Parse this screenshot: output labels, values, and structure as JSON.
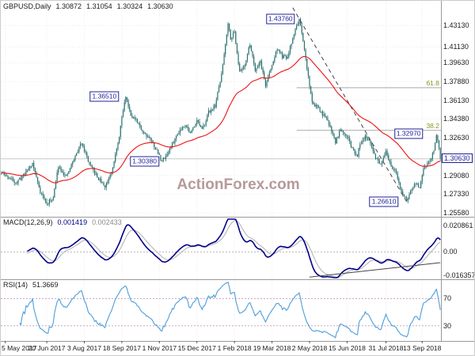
{
  "header": {
    "symbol": "GBPUSD,Daily",
    "open": "1.30872",
    "high": "1.31054",
    "low": "1.30324",
    "close": "1.30630"
  },
  "watermark": "ActionForex.com",
  "chart_data": {
    "type": "candlestick",
    "symbol": "GBPUSD",
    "timeframe": "Daily",
    "panels": [
      "price",
      "MACD",
      "RSI"
    ],
    "candles_count": 340,
    "x_axis": {
      "tick_days": [
        3,
        35,
        64,
        93,
        122,
        151,
        180,
        209,
        238,
        267,
        297,
        325
      ],
      "tick_labels": [
        "5 May 2017",
        "20 Jun 2017",
        "3 Aug 2017",
        "18 Sep 2017",
        "1 Nov 2017",
        "15 Dec 2017",
        "1 Feb 2018",
        "19 Mar 2018",
        "2 May 2018",
        "15 Jun 2018",
        "31 Jul 2018",
        "13 Sep 2018"
      ]
    },
    "y_axis": {
      "min": 1.252,
      "max": 1.4545,
      "ticks": [
        {
          "label": "1.43130",
          "price": 1.4313
        },
        {
          "label": "1.41130",
          "price": 1.4113
        },
        {
          "label": "1.39630",
          "price": 1.3963
        },
        {
          "label": "1.37880",
          "price": 1.3788
        },
        {
          "label": "1.36130",
          "price": 1.3613
        },
        {
          "label": "1.34380",
          "price": 1.3438
        },
        {
          "label": "1.32630",
          "price": 1.3263
        },
        {
          "label": "1.30630",
          "price": 1.3063,
          "current": true
        },
        {
          "label": "1.29080",
          "price": 1.2908
        },
        {
          "label": "1.27330",
          "price": 1.2733
        },
        {
          "label": "1.25580",
          "price": 1.2558
        }
      ]
    },
    "price_path": [
      [
        0,
        1.293
      ],
      [
        5,
        1.289
      ],
      [
        12,
        1.284
      ],
      [
        18,
        1.293
      ],
      [
        24,
        1.302
      ],
      [
        30,
        1.276
      ],
      [
        35,
        1.264
      ],
      [
        40,
        1.27
      ],
      [
        44,
        1.3
      ],
      [
        50,
        1.289
      ],
      [
        56,
        1.306
      ],
      [
        62,
        1.322
      ],
      [
        68,
        1.301
      ],
      [
        74,
        1.289
      ],
      [
        80,
        1.28
      ],
      [
        85,
        1.295
      ],
      [
        90,
        1.32
      ],
      [
        93,
        1.345
      ],
      [
        96,
        1.3651
      ],
      [
        100,
        1.348
      ],
      [
        105,
        1.34
      ],
      [
        110,
        1.331
      ],
      [
        115,
        1.325
      ],
      [
        120,
        1.314
      ],
      [
        124,
        1.304
      ],
      [
        128,
        1.311
      ],
      [
        132,
        1.32
      ],
      [
        137,
        1.332
      ],
      [
        142,
        1.339
      ],
      [
        146,
        1.33
      ],
      [
        151,
        1.343
      ],
      [
        155,
        1.333
      ],
      [
        160,
        1.35
      ],
      [
        165,
        1.356
      ],
      [
        170,
        1.385
      ],
      [
        175,
        1.434
      ],
      [
        177,
        1.42
      ],
      [
        180,
        1.425
      ],
      [
        184,
        1.387
      ],
      [
        188,
        1.395
      ],
      [
        192,
        1.414
      ],
      [
        196,
        1.39
      ],
      [
        200,
        1.398
      ],
      [
        204,
        1.375
      ],
      [
        209,
        1.394
      ],
      [
        213,
        1.41
      ],
      [
        217,
        1.402
      ],
      [
        221,
        1.401
      ],
      [
        226,
        1.424
      ],
      [
        230,
        1.4376
      ],
      [
        234,
        1.408
      ],
      [
        240,
        1.359
      ],
      [
        244,
        1.355
      ],
      [
        248,
        1.348
      ],
      [
        252,
        1.342
      ],
      [
        256,
        1.33
      ],
      [
        258,
        1.322
      ],
      [
        262,
        1.335
      ],
      [
        267,
        1.328
      ],
      [
        271,
        1.315
      ],
      [
        275,
        1.31
      ],
      [
        277,
        1.32
      ],
      [
        281,
        1.328
      ],
      [
        285,
        1.32
      ],
      [
        289,
        1.308
      ],
      [
        293,
        1.3
      ],
      [
        297,
        1.312
      ],
      [
        301,
        1.3
      ],
      [
        305,
        1.292
      ],
      [
        309,
        1.276
      ],
      [
        313,
        1.2661
      ],
      [
        316,
        1.276
      ],
      [
        320,
        1.283
      ],
      [
        323,
        1.279
      ],
      [
        326,
        1.296
      ],
      [
        329,
        1.302
      ],
      [
        332,
        1.308
      ],
      [
        334,
        1.313
      ],
      [
        336,
        1.3297
      ],
      [
        338,
        1.318
      ],
      [
        339,
        1.3063
      ]
    ],
    "key_points": [
      {
        "day": 96,
        "price": 1.3651,
        "kind": "high"
      },
      {
        "day": 124,
        "price": 1.3038,
        "kind": "low"
      },
      {
        "day": 175,
        "price": 1.4345,
        "kind": "high"
      },
      {
        "day": 230,
        "price": 1.4376,
        "kind": "high"
      },
      {
        "day": 313,
        "price": 1.2661,
        "kind": "low"
      },
      {
        "day": 336,
        "price": 1.3297,
        "kind": "high"
      },
      {
        "day": 339,
        "price": 1.3063,
        "kind": "close"
      }
    ],
    "price_labels": [
      {
        "text": "1.43760",
        "day": 228,
        "price": 1.4376
      },
      {
        "text": "1.36510",
        "day": 92,
        "price": 1.3651
      },
      {
        "text": "1.30380",
        "day": 123,
        "price": 1.3038
      },
      {
        "text": "1.32970",
        "day": 327,
        "price": 1.3297
      },
      {
        "text": "1.26610",
        "day": 308,
        "price": 1.2661
      }
    ],
    "trendline": {
      "from": [
        225,
        1.448
      ],
      "to": [
        313,
        1.2661
      ],
      "style": "dashed"
    },
    "fib_levels": [
      {
        "label": "61.8",
        "price": 1.373
      },
      {
        "label": "38.2",
        "price": 1.333
      }
    ],
    "fib_start_day": 228,
    "current_price": 1.3063,
    "moving_average": {
      "type": "EMA",
      "period": 55
    },
    "indicators": {
      "macd": {
        "label": "MACD(12,26,9)",
        "main_value": "0.001419",
        "signal_value": "0.002433",
        "fast": 12,
        "slow": 26,
        "signal": 9,
        "axis_max": {
          "label": "0.020861",
          "value": 0.020861
        },
        "axis_zero": {
          "label": "0.00",
          "value": 0
        },
        "axis_min": {
          "label": "-0.016357",
          "value": -0.016357
        },
        "trendline": {
          "from": [
            238,
            -0.016
          ],
          "to": [
            339,
            -0.0068
          ]
        }
      },
      "rsi": {
        "label": "RSI(14)",
        "period": 14,
        "value": "51.3669",
        "levels": [
          {
            "label": "70",
            "value": 70
          },
          {
            "label": "30",
            "value": 30
          }
        ],
        "display_min": 10,
        "display_max": 95
      }
    },
    "colors": {
      "background": "#ffffff",
      "grid": "#ececec",
      "candle": "#2b6f6f",
      "ma": "#ee1111",
      "trendline": "#444444",
      "fib_line": "#a8a8a8",
      "fib_label": "#8f8f2a",
      "price_label": "#22229a",
      "axis_text": "#1b1b1b",
      "current_price_line": "#c8c8c8",
      "macd_main": "#000089",
      "macd_signal": "#b0b0b0",
      "rsi_line": "#4d9ddb",
      "rsi_level": "#c9a9c9",
      "separator": "#999999",
      "watermark": "#b59a9a"
    }
  }
}
